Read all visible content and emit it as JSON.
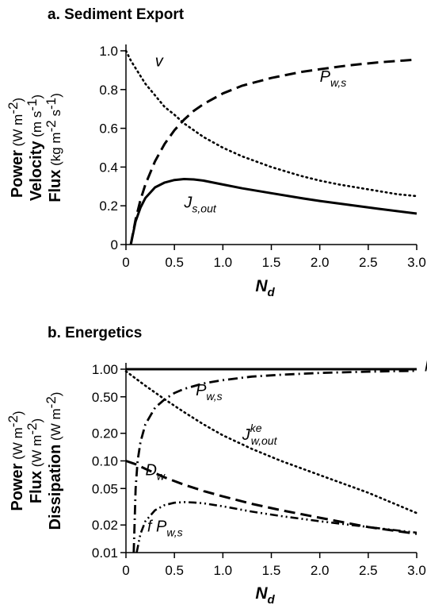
{
  "chart_data": [
    {
      "type": "line",
      "title": "a. Sediment Export",
      "xlabel": {
        "main": "N",
        "sub": "d"
      },
      "ylabel_lines": [
        {
          "bold": "Power",
          "unit": "(W m",
          "sup": "-2",
          "tail": ")"
        },
        {
          "bold": "Velocity",
          "unit": "(m s",
          "sup": "-1",
          "tail": ")"
        },
        {
          "bold": "Flux",
          "unit": "(kg m",
          "sup": "-2",
          "tail": " s",
          "sup2": "-1",
          "tail2": ")"
        }
      ],
      "xlim": [
        0,
        3.0
      ],
      "ylim": [
        0,
        1.0
      ],
      "yscale": "linear",
      "x_ticks": [
        "0",
        "0.5",
        "1.0",
        "1.5",
        "2.0",
        "2.5",
        "3.0"
      ],
      "x_tick_values": [
        0,
        0.5,
        1.0,
        1.5,
        2.0,
        2.5,
        3.0
      ],
      "y_ticks": [
        "0",
        "0.2",
        "0.4",
        "0.6",
        "0.8",
        "1.0"
      ],
      "y_tick_values": [
        0,
        0.2,
        0.4,
        0.6,
        0.8,
        1.0
      ],
      "grid": false,
      "series": [
        {
          "style": "dotted",
          "x": [
            0,
            0.05,
            0.1,
            0.2,
            0.3,
            0.4,
            0.5,
            0.6,
            0.7,
            0.8,
            1.0,
            1.2,
            1.5,
            1.8,
            2.0,
            2.2,
            2.5,
            2.8,
            3.0
          ],
          "y": [
            1.0,
            0.95,
            0.91,
            0.83,
            0.77,
            0.71,
            0.67,
            0.625,
            0.59,
            0.555,
            0.5,
            0.455,
            0.4,
            0.355,
            0.33,
            0.31,
            0.285,
            0.26,
            0.25
          ]
        },
        {
          "style": "dashed",
          "x": [
            0.05,
            0.1,
            0.15,
            0.2,
            0.3,
            0.4,
            0.5,
            0.6,
            0.7,
            0.8,
            1.0,
            1.2,
            1.5,
            1.8,
            2.0,
            2.3,
            2.6,
            3.0
          ],
          "y": [
            0.0,
            0.13,
            0.23,
            0.31,
            0.43,
            0.52,
            0.59,
            0.645,
            0.69,
            0.725,
            0.78,
            0.82,
            0.86,
            0.89,
            0.905,
            0.925,
            0.94,
            0.955
          ]
        },
        {
          "style": "solid",
          "x": [
            0.05,
            0.1,
            0.15,
            0.2,
            0.3,
            0.4,
            0.5,
            0.6,
            0.7,
            0.8,
            1.0,
            1.2,
            1.5,
            1.8,
            2.0,
            2.3,
            2.6,
            3.0
          ],
          "y": [
            0.0,
            0.12,
            0.19,
            0.24,
            0.295,
            0.32,
            0.333,
            0.338,
            0.336,
            0.33,
            0.31,
            0.29,
            0.265,
            0.24,
            0.225,
            0.205,
            0.185,
            0.16
          ]
        }
      ],
      "annotations": [
        {
          "text": "v",
          "sub": "",
          "sup": "",
          "x": 0.3,
          "y": 0.92
        },
        {
          "text": "P",
          "sub": "w,s",
          "sup": "",
          "x": 2.0,
          "y": 0.84
        },
        {
          "text": "J",
          "sub": "s,out",
          "sup": "",
          "x": 0.6,
          "y": 0.19
        }
      ]
    },
    {
      "type": "line",
      "title": "b. Energetics",
      "xlabel": {
        "main": "N",
        "sub": "d"
      },
      "ylabel_lines": [
        {
          "bold": "Power",
          "unit": "(W m",
          "sup": "-2",
          "tail": ")"
        },
        {
          "bold": "Flux",
          "unit": "(W m",
          "sup": "-2",
          "tail": ")"
        },
        {
          "bold": "Dissipation",
          "unit": "(W m",
          "sup": "-2",
          "tail": ")"
        }
      ],
      "xlim": [
        0,
        3.0
      ],
      "ylim": [
        0.01,
        1.0
      ],
      "yscale": "log",
      "x_ticks": [
        "0",
        "0.5",
        "1.0",
        "1.5",
        "2.0",
        "2.5",
        "3.0"
      ],
      "x_tick_values": [
        0,
        0.5,
        1.0,
        1.5,
        2.0,
        2.5,
        3.0
      ],
      "y_ticks": [
        "0.01",
        "0.02",
        "0.05",
        "0.10",
        "0.20",
        "0.50",
        "1.00"
      ],
      "y_tick_values": [
        0.01,
        0.02,
        0.05,
        0.1,
        0.2,
        0.5,
        1.0
      ],
      "grid": false,
      "series": [
        {
          "style": "solid",
          "x": [
            0,
            3.0
          ],
          "y": [
            1.0,
            1.0
          ]
        },
        {
          "style": "dashdot",
          "x": [
            0.08,
            0.1,
            0.12,
            0.15,
            0.2,
            0.3,
            0.4,
            0.5,
            0.6,
            0.8,
            1.0,
            1.3,
            1.6,
            2.0,
            2.5,
            3.0
          ],
          "y": [
            0.01,
            0.05,
            0.1,
            0.16,
            0.25,
            0.38,
            0.47,
            0.55,
            0.61,
            0.7,
            0.76,
            0.83,
            0.87,
            0.91,
            0.94,
            0.96
          ]
        },
        {
          "style": "dotted",
          "x": [
            0,
            0.2,
            0.4,
            0.6,
            0.8,
            1.0,
            1.3,
            1.6,
            2.0,
            2.5,
            3.0
          ],
          "y": [
            0.95,
            0.66,
            0.47,
            0.34,
            0.25,
            0.19,
            0.135,
            0.1,
            0.07,
            0.045,
            0.027
          ]
        },
        {
          "style": "dashed",
          "x": [
            0,
            0.1,
            0.2,
            0.4,
            0.6,
            0.8,
            1.0,
            1.3,
            1.6,
            2.0,
            2.5,
            3.0
          ],
          "y": [
            0.1,
            0.092,
            0.082,
            0.066,
            0.055,
            0.047,
            0.041,
            0.034,
            0.029,
            0.024,
            0.019,
            0.016
          ]
        },
        {
          "style": "dashdotdot",
          "x": [
            0.11,
            0.15,
            0.2,
            0.3,
            0.4,
            0.5,
            0.6,
            0.7,
            0.8,
            1.0,
            1.3,
            1.6,
            2.0,
            2.5,
            3.0
          ],
          "y": [
            0.01,
            0.016,
            0.022,
            0.029,
            0.033,
            0.035,
            0.0355,
            0.0352,
            0.0345,
            0.032,
            0.028,
            0.025,
            0.022,
            0.019,
            0.0165
          ]
        }
      ],
      "annotations": [
        {
          "text": "P",
          "sub": "w",
          "sup": "",
          "x": 3.08,
          "y": 0.95
        },
        {
          "text": "P",
          "sub": "w,s",
          "sup": "",
          "x": 0.72,
          "y": 0.52
        },
        {
          "text": "J",
          "sub": "w,out",
          "sup": "ke",
          "x": 1.2,
          "y": 0.17
        },
        {
          "text": "D",
          "sub": "w",
          "sup": "",
          "x": 0.2,
          "y": 0.07
        },
        {
          "text": "f P",
          "sub": "w,s",
          "sup": "",
          "x": 0.22,
          "y": 0.017
        }
      ]
    }
  ]
}
